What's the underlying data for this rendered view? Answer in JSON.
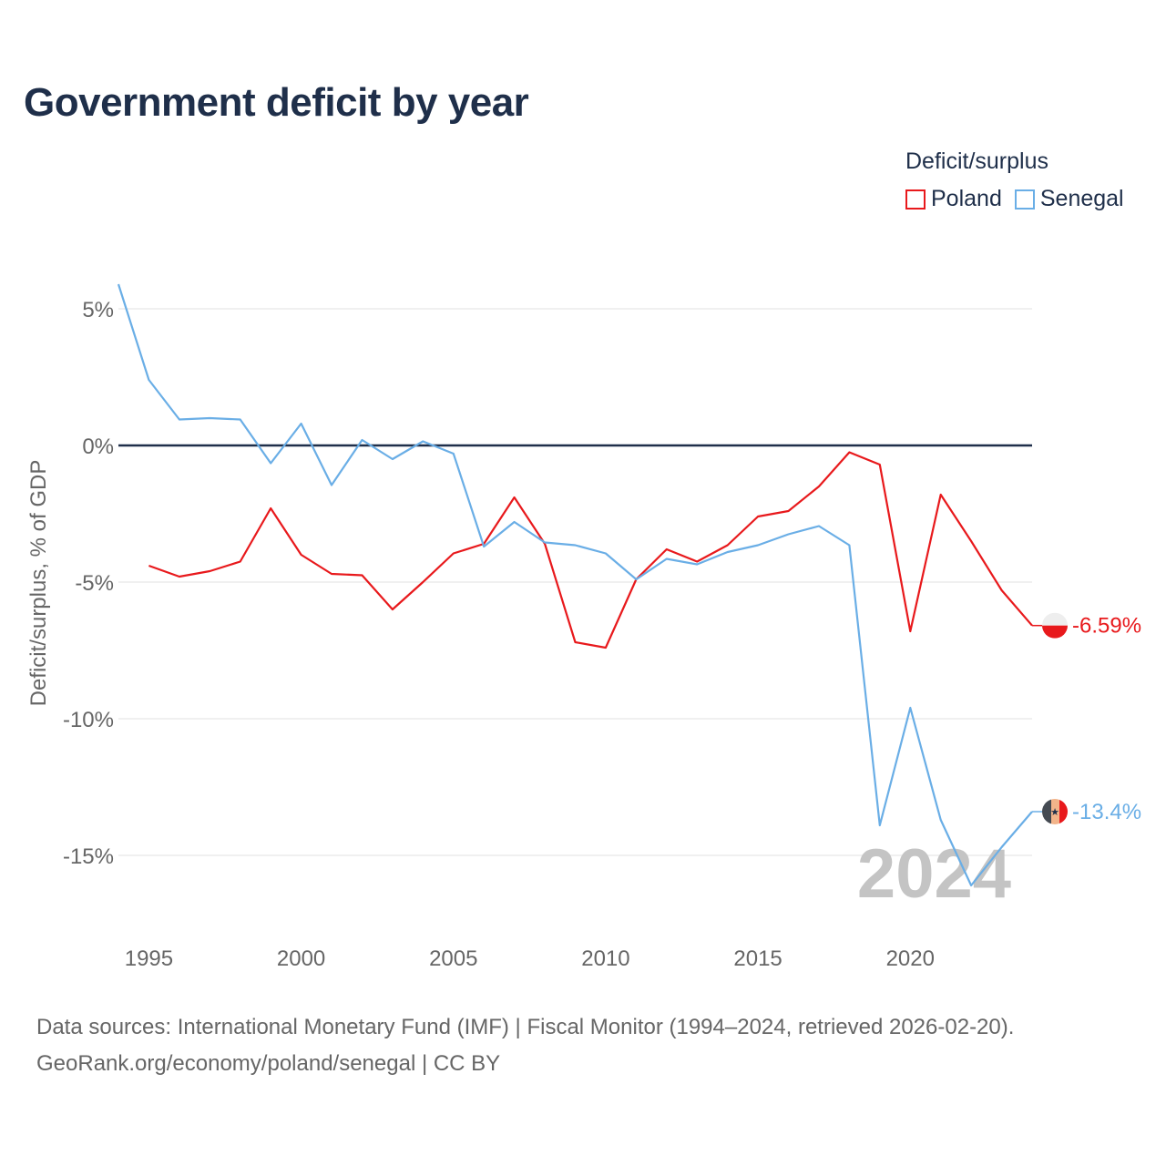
{
  "title": "Government deficit by year",
  "legend": {
    "title": "Deficit/surplus",
    "items": [
      {
        "name": "Poland",
        "color": "#e8191c"
      },
      {
        "name": "Senegal",
        "color": "#6aaee6"
      }
    ]
  },
  "source": {
    "line1": "Data sources: International Monetary Fund (IMF) | Fiscal Monitor (1994–2024, retrieved 2026-02-20).",
    "line2": "GeoRank.org/economy/poland/senegal | CC BY"
  },
  "chart_data": {
    "type": "line",
    "title": "Government deficit by year",
    "xlabel": "",
    "ylabel": "Deficit/surplus, % of GDP",
    "xlim": [
      1994,
      2024
    ],
    "ylim": [
      -17,
      6
    ],
    "x_ticks": [
      1995,
      2000,
      2005,
      2010,
      2015,
      2020
    ],
    "y_ticks": [
      5,
      0,
      -5,
      -10,
      -15
    ],
    "y_tick_labels": [
      "5%",
      "0%",
      "-5%",
      "-10%",
      "-15%"
    ],
    "year_watermark": "2024",
    "series": [
      {
        "name": "Poland",
        "color": "#e8191c",
        "end_label": "-6.59%",
        "points": [
          [
            1995,
            -4.4
          ],
          [
            1996,
            -4.8
          ],
          [
            1997,
            -4.6
          ],
          [
            1998,
            -4.25
          ],
          [
            1999,
            -2.3
          ],
          [
            2000,
            -4.0
          ],
          [
            2001,
            -4.7
          ],
          [
            2002,
            -4.75
          ],
          [
            2003,
            -6.0
          ],
          [
            2004,
            -5.0
          ],
          [
            2005,
            -3.95
          ],
          [
            2006,
            -3.6
          ],
          [
            2007,
            -1.9
          ],
          [
            2008,
            -3.6
          ],
          [
            2009,
            -7.2
          ],
          [
            2010,
            -7.4
          ],
          [
            2011,
            -4.9
          ],
          [
            2012,
            -3.8
          ],
          [
            2013,
            -4.25
          ],
          [
            2014,
            -3.65
          ],
          [
            2015,
            -2.6
          ],
          [
            2016,
            -2.4
          ],
          [
            2017,
            -1.5
          ],
          [
            2018,
            -0.25
          ],
          [
            2019,
            -0.7
          ],
          [
            2020,
            -6.8
          ],
          [
            2021,
            -1.8
          ],
          [
            2022,
            -3.5
          ],
          [
            2023,
            -5.3
          ],
          [
            2024,
            -6.59
          ]
        ]
      },
      {
        "name": "Senegal",
        "color": "#6aaee6",
        "end_label": "-13.4%",
        "points": [
          [
            1994,
            5.9
          ],
          [
            1995,
            2.4
          ],
          [
            1996,
            0.95
          ],
          [
            1997,
            1.0
          ],
          [
            1998,
            0.95
          ],
          [
            1999,
            -0.65
          ],
          [
            2000,
            0.8
          ],
          [
            2001,
            -1.45
          ],
          [
            2002,
            0.2
          ],
          [
            2003,
            -0.5
          ],
          [
            2004,
            0.15
          ],
          [
            2005,
            -0.3
          ],
          [
            2006,
            -3.7
          ],
          [
            2007,
            -2.8
          ],
          [
            2008,
            -3.55
          ],
          [
            2009,
            -3.65
          ],
          [
            2010,
            -3.95
          ],
          [
            2011,
            -4.9
          ],
          [
            2012,
            -4.15
          ],
          [
            2013,
            -4.35
          ],
          [
            2014,
            -3.9
          ],
          [
            2015,
            -3.65
          ],
          [
            2016,
            -3.25
          ],
          [
            2017,
            -2.95
          ],
          [
            2018,
            -3.65
          ],
          [
            2019,
            -13.9
          ],
          [
            2020,
            -9.6
          ],
          [
            2021,
            -13.7
          ],
          [
            2022,
            -16.1
          ],
          [
            2023,
            -14.7
          ],
          [
            2024,
            -13.4
          ]
        ]
      }
    ]
  }
}
